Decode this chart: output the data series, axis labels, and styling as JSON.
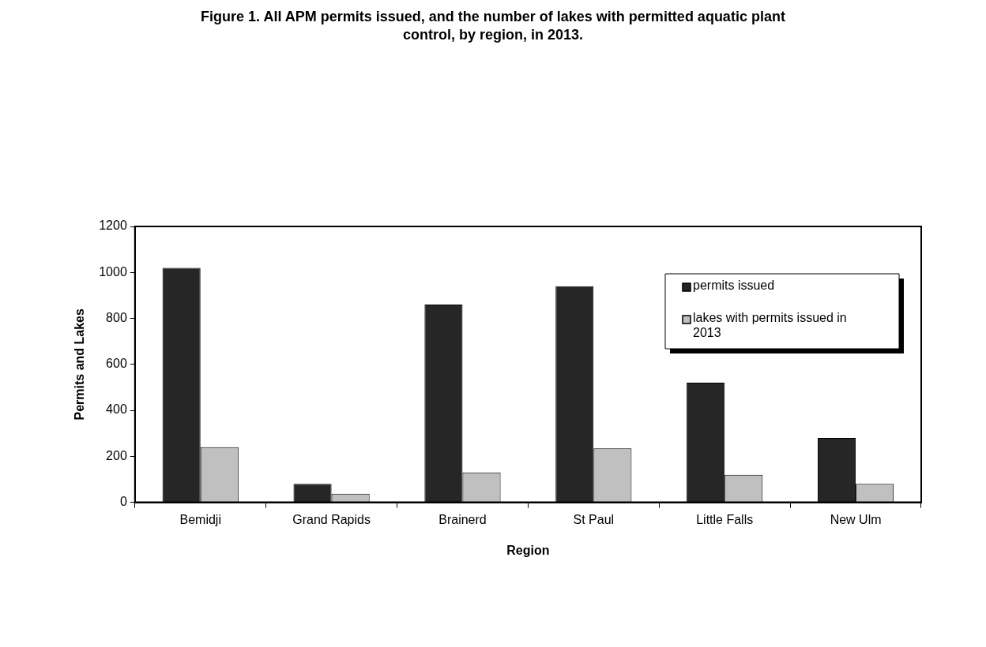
{
  "chart_data": {
    "type": "bar",
    "title": "Figure 1. All APM permits issued, and the number of lakes with permitted aquatic plant control, by region, in 2013.",
    "xlabel": "Region",
    "ylabel": "Permits and Lakes",
    "categories": [
      "Bemidji",
      "Grand Rapids",
      "Brainerd",
      "St Paul",
      "Little Falls",
      "New Ulm"
    ],
    "series": [
      {
        "name": "permits issued",
        "color": "#262626",
        "values": [
          1020,
          80,
          860,
          940,
          520,
          280
        ]
      },
      {
        "name": "lakes with permits issued in 2013",
        "color": "#c0c0c0",
        "values": [
          240,
          37,
          130,
          235,
          120,
          80
        ]
      }
    ],
    "ylim": [
      0,
      1200
    ],
    "yticks": [
      0,
      200,
      400,
      600,
      800,
      1000,
      1200
    ],
    "grid": false,
    "legend": "top right"
  }
}
